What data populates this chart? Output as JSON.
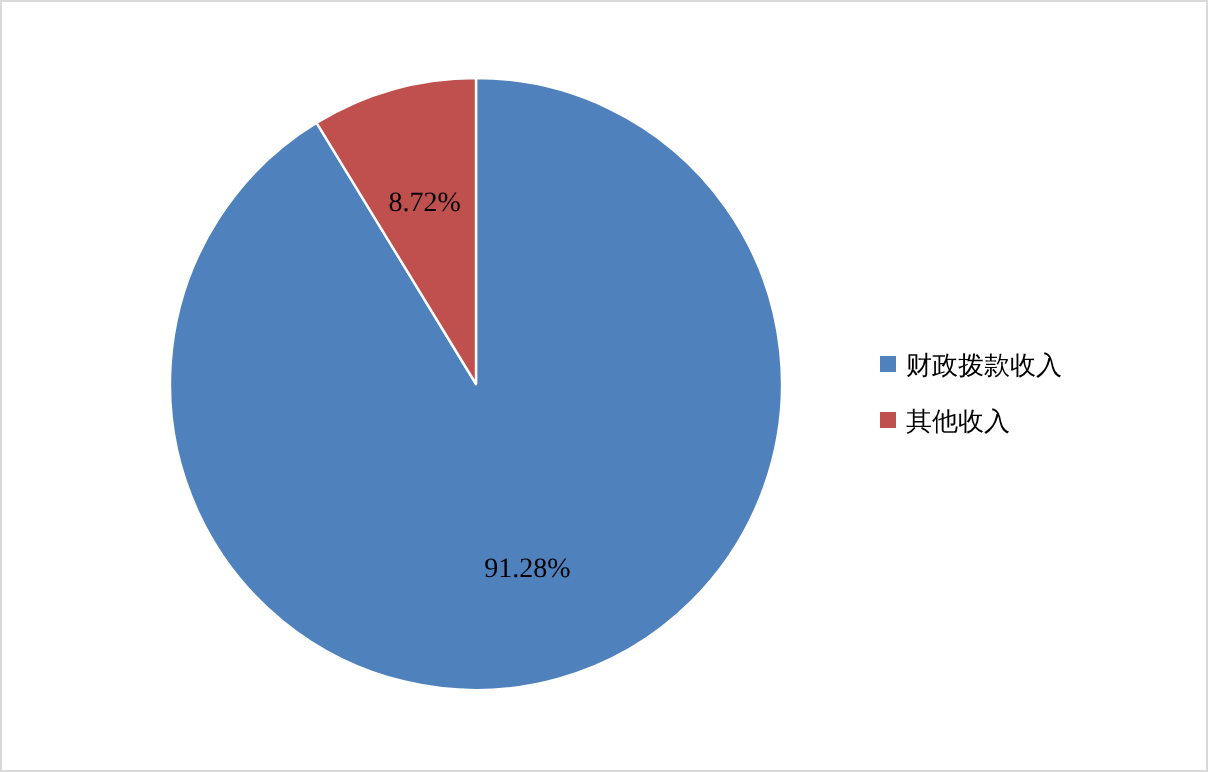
{
  "chart_data": {
    "type": "pie",
    "categories": [
      "财政拨款收入",
      "其他收入"
    ],
    "values": [
      91.28,
      8.72
    ],
    "colors": [
      "#4f81bd",
      "#c0504d"
    ],
    "value_labels": [
      "91.28%",
      "8.72%"
    ],
    "legend": "right"
  }
}
